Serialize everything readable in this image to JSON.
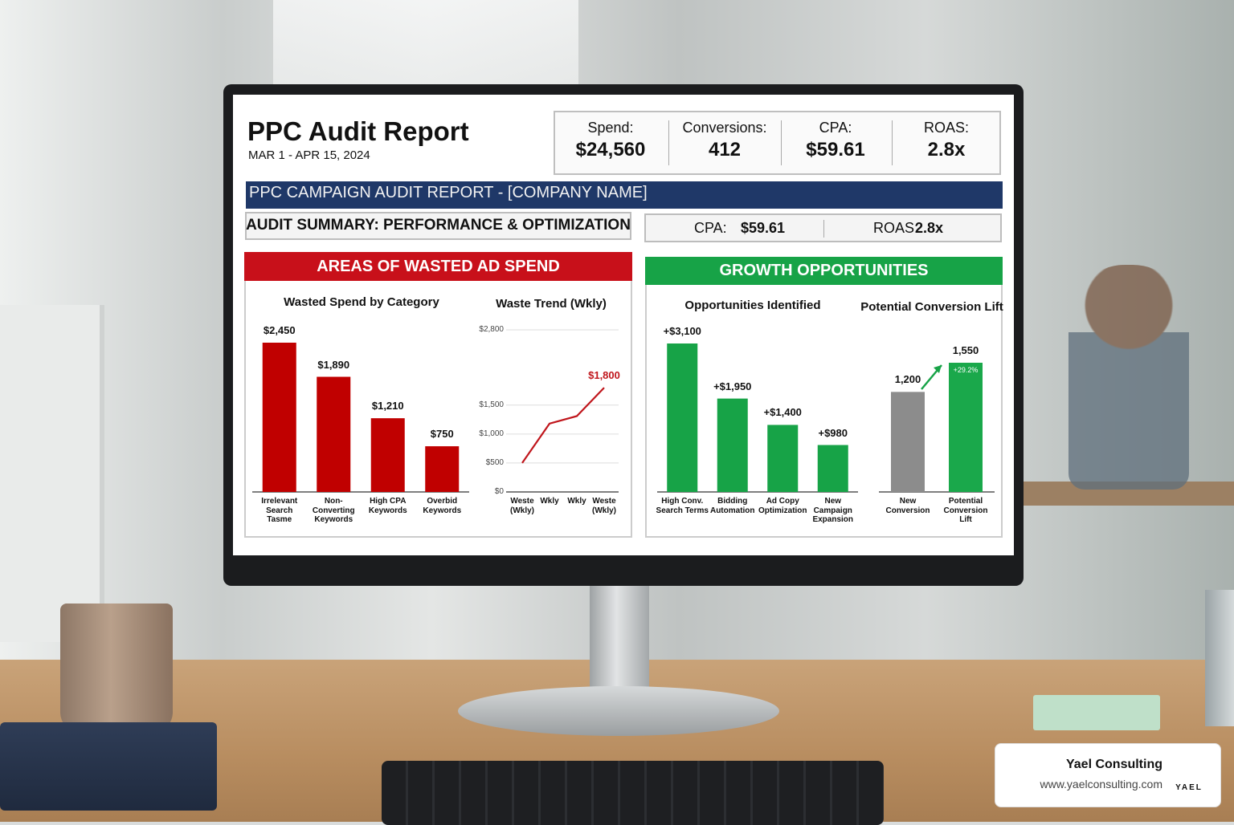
{
  "header": {
    "title": "PPC Audit Report",
    "date": "MAR 1 - APR 15, 2024"
  },
  "kpis": [
    {
      "label": "Spend:",
      "value": "$24,560"
    },
    {
      "label": "Conversions:",
      "value": "412"
    },
    {
      "label": "CPA:",
      "value": "$59.61"
    },
    {
      "label": "ROAS:",
      "value": "2.8x"
    }
  ],
  "banner": "PPC CAMPAIGN AUDIT REPORT - [COMPANY NAME]",
  "summary": {
    "title": "AUDIT SUMMARY: PERFORMANCE & OPTIMIZATION",
    "kpis": [
      {
        "label": "CPA:",
        "value": "$59.61"
      },
      {
        "label": "ROAS:",
        "value": "2.8x"
      }
    ]
  },
  "sections": [
    "AREAS OF WASTED AD SPEND",
    "GROWTH OPPORTUNITIES"
  ],
  "brand": {
    "name": "Yael Consulting",
    "url": "www.yaelconsulting.com",
    "logo": "YAEL"
  },
  "chart_data": [
    {
      "type": "bar",
      "title": "Wasted Spend by Category",
      "categories": [
        "Irrelevant\nSearch\nTasme",
        "Non-\nConverting\nKeywords",
        "High CPA\nKeywords",
        "Overbid\nKeywords"
      ],
      "values": [
        2450,
        1890,
        1210,
        750
      ],
      "value_labels": [
        "$2,450",
        "$1,890",
        "$1,210",
        "$750"
      ],
      "color": "#c00000"
    },
    {
      "type": "line",
      "title": "Waste Trend (Wkly)",
      "categories": [
        "Weste\n(Wkly)",
        "Wkly",
        "Wkly",
        "Weste\n(Wkly)"
      ],
      "values": [
        500,
        1180,
        1310,
        1800
      ],
      "value_labels": [
        null,
        null,
        null,
        "$1,800"
      ],
      "color": "#c0161c",
      "ylim": [
        0,
        2800
      ],
      "yticks": [
        {
          "value": 0,
          "label": "$0"
        },
        {
          "value": 500,
          "label": "$500"
        },
        {
          "value": 1000,
          "label": "$1,000"
        },
        {
          "value": 1500,
          "label": "$1,500"
        },
        {
          "value": 2800,
          "label": "$2,800"
        }
      ],
      "grid": true
    },
    {
      "type": "bar",
      "title": "Opportunities Identified",
      "categories": [
        "High Conv.\nSearch Terms",
        "Bidding\nAutomation",
        "Ad Copy\nOptimization",
        "New\nCampaign\nExpansion"
      ],
      "values": [
        3100,
        1950,
        1400,
        980
      ],
      "value_labels": [
        "+$3,100",
        "+$1,950",
        "+$1,400",
        "+$980"
      ],
      "color": "#17a347"
    },
    {
      "type": "bar",
      "title": "Potential Conversion Lift",
      "categories": [
        "New\nConversion",
        "Potential\nConversion\nLift"
      ],
      "values": [
        1200,
        1550
      ],
      "value_labels": [
        "1,200",
        "1,550"
      ],
      "colors": [
        "#8c8c8c",
        "#1aa84b"
      ],
      "annotation": "+29.2%"
    }
  ]
}
